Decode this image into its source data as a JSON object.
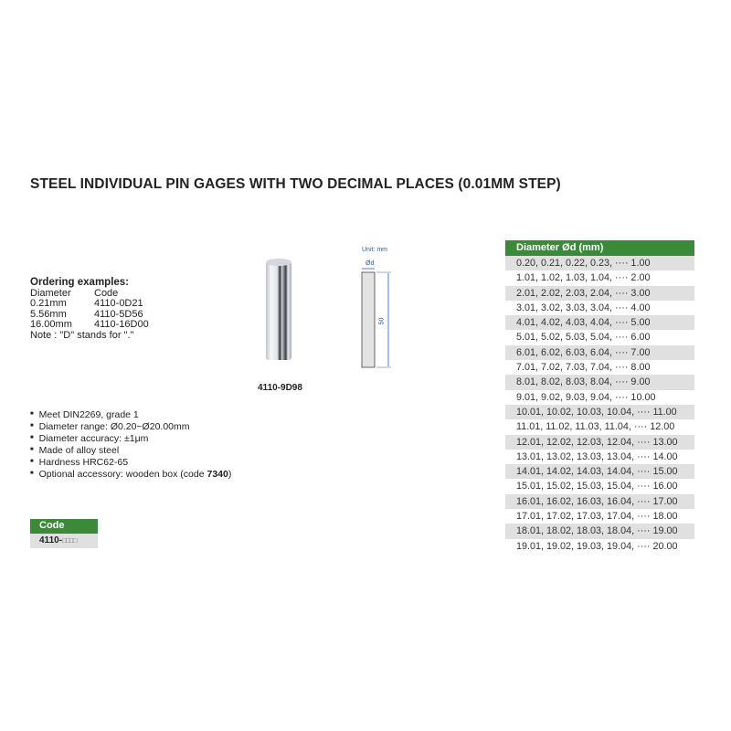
{
  "title": "STEEL INDIVIDUAL PIN GAGES WITH TWO DECIMAL PLACES (0.01MM STEP)",
  "ordering": {
    "heading": "Ordering examples:",
    "columns": [
      "Diameter",
      "Code"
    ],
    "rows": [
      [
        "0.21mm",
        "4110-0D21"
      ],
      [
        "5.56mm",
        "4110-5D56"
      ],
      [
        "16.00mm",
        "4110-16D00"
      ]
    ],
    "note": "Note : \"D\"  stands for \".\""
  },
  "image_caption": "4110-9D98",
  "diagram": {
    "unit": "Unit: mm",
    "diameter_label": "Ød",
    "length_label": "50"
  },
  "features": [
    "Meet DIN2269, grade 1",
    "Diameter range: Ø0.20~Ø20.00mm",
    "Diameter accuracy: ±1μm",
    "Made of alloy steel",
    "Hardness HRC62-65"
  ],
  "accessory": {
    "text": "Optional accessory: wooden box (code ",
    "code": "7340",
    "close": ")"
  },
  "code_table": {
    "header": "Code",
    "prefix": "4110-",
    "placeholder": "□□□□"
  },
  "diameter_table": {
    "header": "Diameter Ød (mm)",
    "rows": [
      "0.20, 0.21, 0.22, 0.23, ···· 1.00",
      "1.01, 1.02, 1.03, 1.04, ···· 2.00",
      "2.01, 2.02, 2.03, 2.04, ···· 3.00",
      "3.01, 3.02, 3.03, 3.04, ···· 4.00",
      "4.01, 4.02, 4.03, 4.04, ···· 5.00",
      "5.01, 5.02, 5.03, 5.04, ···· 6.00",
      "6.01, 6.02, 6.03, 6.04, ···· 7.00",
      "7.01, 7.02, 7.03, 7.04, ···· 8.00",
      "8.01, 8.02, 8.03, 8.04, ···· 9.00",
      "9.01, 9.02, 9.03, 9.04, ···· 10.00",
      "10.01, 10.02, 10.03, 10.04, ···· 11.00",
      "11.01, 11.02,  11.03, 11.04, ···· 12.00",
      "12.01, 12.02, 12.03, 12.04, ···· 13.00",
      "13.01, 13.02, 13.03, 13.04, ···· 14.00",
      "14.01, 14.02, 14.03, 14.04, ···· 15.00",
      "15.01, 15.02, 15.03, 15.04, ···· 16.00",
      "16.01, 16.02, 16.03, 16.04, ···· 17.00",
      "17.01, 17.02, 17.03, 17.04, ···· 18.00",
      "18.01, 18.02, 18.03, 18.04, ···· 19.00",
      "19.01, 19.02, 19.03, 19.04, ···· 20.00"
    ]
  },
  "colors": {
    "header_green": "#3a8a3a",
    "row_gray": "#e0e0e0",
    "diagram_blue": "#2a5aa8"
  }
}
